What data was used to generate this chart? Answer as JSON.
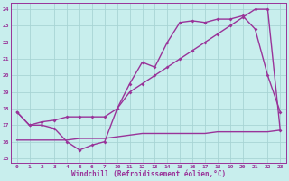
{
  "background_color": "#c8eeed",
  "grid_color": "#a8d4d4",
  "line_color": "#993399",
  "xlabel": "Windchill (Refroidissement éolien,°C)",
  "ylim": [
    15,
    24
  ],
  "yticks": [
    15,
    16,
    17,
    18,
    19,
    20,
    21,
    22,
    23,
    24
  ],
  "line1_y": [
    17.8,
    17.0,
    17.0,
    16.8,
    16.0,
    15.5,
    15.8,
    16.0,
    18.0,
    19.5,
    20.8,
    20.5,
    22.0,
    23.2,
    23.3,
    23.2,
    23.4,
    23.4,
    23.6,
    22.8,
    20.0,
    17.8
  ],
  "line2_y": [
    17.8,
    17.0,
    17.2,
    17.3,
    17.5,
    17.5,
    17.5,
    17.5,
    18.0,
    19.0,
    19.5,
    20.0,
    20.5,
    21.0,
    21.5,
    22.0,
    22.5,
    23.0,
    23.5,
    24.0,
    24.0,
    16.7
  ],
  "line3_y": [
    16.1,
    16.1,
    16.1,
    16.1,
    16.1,
    16.2,
    16.2,
    16.2,
    16.3,
    16.4,
    16.5,
    16.5,
    16.5,
    16.5,
    16.5,
    16.5,
    16.6,
    16.6,
    16.6,
    16.6,
    16.6,
    16.7
  ],
  "hours": [
    0,
    1,
    2,
    3,
    4,
    5,
    6,
    7,
    10,
    11,
    12,
    13,
    14,
    15,
    16,
    17,
    18,
    19,
    20,
    21,
    22,
    23
  ],
  "xtick_hours": [
    0,
    1,
    2,
    3,
    4,
    5,
    6,
    7,
    10,
    11,
    12,
    13,
    14,
    15,
    16,
    17,
    18,
    19,
    20,
    21,
    22,
    23
  ],
  "xtick_labels": [
    "0",
    "1",
    "2",
    "3",
    "4",
    "5",
    "6",
    "7",
    "10",
    "11",
    "12",
    "13",
    "14",
    "15",
    "16",
    "17",
    "18",
    "19",
    "20",
    "21",
    "22",
    "23"
  ]
}
